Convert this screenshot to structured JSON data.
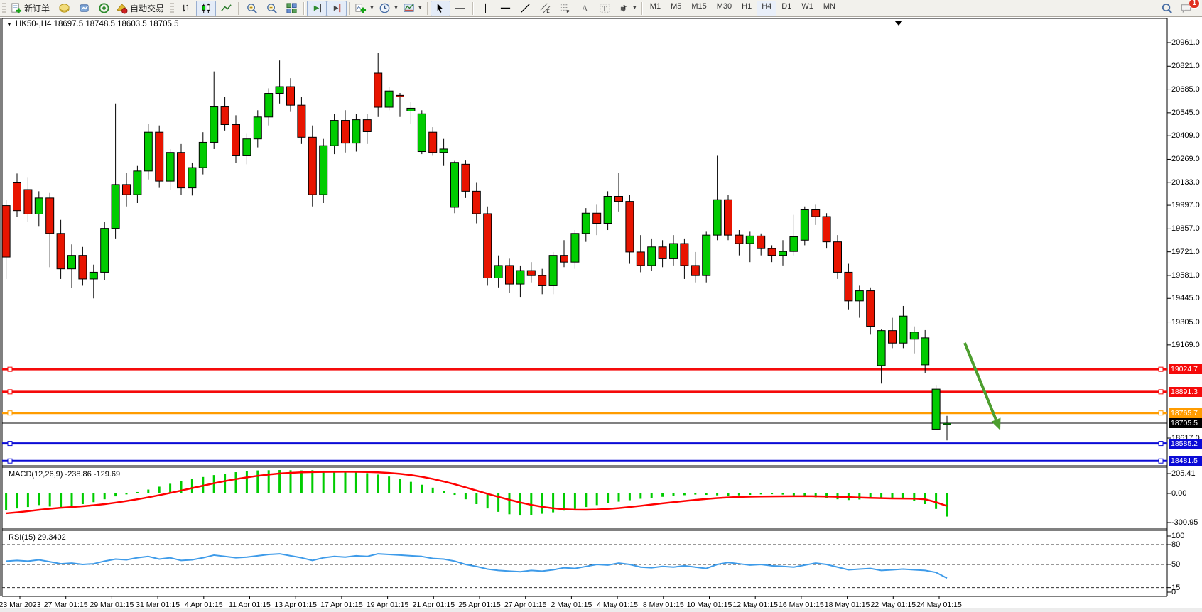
{
  "toolbar": {
    "new_order_label": "新订单",
    "autotrade_label": "自动交易",
    "timeframes": [
      "M1",
      "M5",
      "M15",
      "M30",
      "H1",
      "H4",
      "D1",
      "W1",
      "MN"
    ],
    "active_timeframe": "H4",
    "notification_count": "1",
    "icons": [
      "new-order",
      "market-watch",
      "upload-chart",
      "ticks",
      "auto-trading",
      "bar-chart",
      "candlestick-chart",
      "line-chart",
      "zoom-in",
      "zoom-out",
      "tile-windows",
      "auto-scroll",
      "chart-shift",
      "add-indicator",
      "periods",
      "templates",
      "cursor",
      "crosshair",
      "vertical-line",
      "horizontal-line",
      "trendline",
      "equidistant-channel",
      "fibonacci",
      "text",
      "text-label",
      "arrow-objects",
      "search",
      "notifications"
    ]
  },
  "chart": {
    "header": "HK50-,H4  18697.5 18748.5 18603.5 18705.5",
    "symbol": "HK50-",
    "period": "H4"
  },
  "chart_data": {
    "type": "candlestick",
    "title": "HK50-,H4",
    "ohlc_current": {
      "open": 18697.5,
      "high": 18748.5,
      "low": 18603.5,
      "close": 18705.5
    },
    "candles": [
      [
        19995,
        20030,
        19560,
        19690
      ],
      [
        20130,
        20185,
        19930,
        19965
      ],
      [
        20090,
        20160,
        19900,
        19945
      ],
      [
        19945,
        20080,
        19870,
        20040
      ],
      [
        20040,
        20070,
        19630,
        19830
      ],
      [
        19830,
        19910,
        19560,
        19620
      ],
      [
        19620,
        19765,
        19505,
        19700
      ],
      [
        19700,
        19750,
        19520,
        19560
      ],
      [
        19560,
        19645,
        19445,
        19600
      ],
      [
        19600,
        19900,
        19555,
        19860
      ],
      [
        19860,
        20600,
        19800,
        20120
      ],
      [
        20120,
        20190,
        19990,
        20060
      ],
      [
        20060,
        20230,
        20010,
        20200
      ],
      [
        20200,
        20480,
        20150,
        20430
      ],
      [
        20430,
        20470,
        20100,
        20140
      ],
      [
        20140,
        20330,
        20090,
        20310
      ],
      [
        20310,
        20360,
        20060,
        20100
      ],
      [
        20100,
        20250,
        20055,
        20220
      ],
      [
        20220,
        20430,
        20180,
        20370
      ],
      [
        20370,
        20790,
        20330,
        20580
      ],
      [
        20580,
        20640,
        20440,
        20475
      ],
      [
        20475,
        20530,
        20250,
        20290
      ],
      [
        20290,
        20420,
        20240,
        20390
      ],
      [
        20390,
        20560,
        20340,
        20520
      ],
      [
        20520,
        20690,
        20470,
        20660
      ],
      [
        20660,
        20855,
        20600,
        20700
      ],
      [
        20700,
        20750,
        20550,
        20590
      ],
      [
        20590,
        20640,
        20360,
        20400
      ],
      [
        20400,
        20470,
        19990,
        20060
      ],
      [
        20060,
        20390,
        20010,
        20350
      ],
      [
        20350,
        20540,
        20300,
        20500
      ],
      [
        20500,
        20560,
        20310,
        20365
      ],
      [
        20365,
        20540,
        20315,
        20504
      ],
      [
        20504,
        20539,
        20360,
        20433
      ],
      [
        20780,
        20898,
        20520,
        20578
      ],
      [
        20578,
        20700,
        20560,
        20674
      ],
      [
        20648,
        20662,
        20520,
        20640
      ],
      [
        20555,
        20610,
        20480,
        20572
      ],
      [
        20315,
        20560,
        20300,
        20539
      ],
      [
        20430,
        20460,
        20290,
        20310
      ],
      [
        20310,
        20390,
        20230,
        20330
      ],
      [
        19985,
        20260,
        19950,
        20251
      ],
      [
        20240,
        20262,
        20040,
        20080
      ],
      [
        20080,
        20130,
        19890,
        19947
      ],
      [
        19947,
        19990,
        19520,
        19566
      ],
      [
        19566,
        19700,
        19510,
        19640
      ],
      [
        19640,
        19680,
        19480,
        19530
      ],
      [
        19530,
        19640,
        19450,
        19610
      ],
      [
        19610,
        19660,
        19540,
        19580
      ],
      [
        19580,
        19620,
        19470,
        19520
      ],
      [
        19520,
        19720,
        19470,
        19700
      ],
      [
        19700,
        19790,
        19630,
        19660
      ],
      [
        19660,
        19850,
        19620,
        19830
      ],
      [
        19830,
        19980,
        19780,
        19950
      ],
      [
        19950,
        20000,
        19820,
        19890
      ],
      [
        19890,
        20080,
        19850,
        20050
      ],
      [
        20050,
        20190,
        19960,
        20020
      ],
      [
        20020,
        20060,
        19650,
        19720
      ],
      [
        19720,
        19820,
        19600,
        19640
      ],
      [
        19640,
        19800,
        19610,
        19750
      ],
      [
        19750,
        19790,
        19630,
        19680
      ],
      [
        19680,
        19820,
        19640,
        19770
      ],
      [
        19770,
        19800,
        19560,
        19640
      ],
      [
        19640,
        19720,
        19540,
        19580
      ],
      [
        19580,
        19840,
        19540,
        19820
      ],
      [
        19820,
        20290,
        19790,
        20030
      ],
      [
        20030,
        20060,
        19790,
        19820
      ],
      [
        19820,
        19850,
        19700,
        19770
      ],
      [
        19770,
        19840,
        19660,
        19815
      ],
      [
        19815,
        19830,
        19700,
        19740
      ],
      [
        19740,
        19760,
        19660,
        19700
      ],
      [
        19700,
        19790,
        19640,
        19723
      ],
      [
        19723,
        19940,
        19700,
        19810
      ],
      [
        19790,
        19990,
        19760,
        19970
      ],
      [
        19970,
        20000,
        19880,
        19930
      ],
      [
        19930,
        19950,
        19740,
        19780
      ],
      [
        19780,
        19820,
        19560,
        19600
      ],
      [
        19600,
        19650,
        19380,
        19430
      ],
      [
        19430,
        19520,
        19330,
        19490
      ],
      [
        19490,
        19510,
        19230,
        19280
      ],
      [
        19047,
        19260,
        18940,
        19254
      ],
      [
        19254,
        19330,
        19150,
        19180
      ],
      [
        19180,
        19400,
        19150,
        19340
      ],
      [
        19203,
        19279,
        19119,
        19245
      ],
      [
        19051,
        19257,
        19004,
        19211
      ],
      [
        18670,
        18932,
        18665,
        18907
      ],
      [
        18697.5,
        18748.5,
        18603.5,
        18705.5
      ]
    ],
    "price_axis_ticks": [
      "20961.0",
      "20821.0",
      "20685.0",
      "20545.0",
      "20409.0",
      "20269.0",
      "20133.0",
      "19997.0",
      "19857.0",
      "19721.0",
      "19581.0",
      "19445.0",
      "19305.0",
      "19169.0",
      "18617.0"
    ],
    "horizontal_lines": [
      {
        "price": 19024.7,
        "label": "19024.7",
        "color": "#f50a0a",
        "width": 3
      },
      {
        "price": 18891.3,
        "label": "18891.3",
        "color": "#f50a0a",
        "width": 3
      },
      {
        "price": 18765.7,
        "label": "18765.7",
        "color": "#ff9c00",
        "width": 3
      },
      {
        "price": 18585.2,
        "label": "18585.2",
        "color": "#0b0bd6",
        "width": 3
      },
      {
        "price": 18481.5,
        "label": "18481.5",
        "color": "#0b0bd6",
        "width": 3
      }
    ],
    "current_price_line": {
      "price": 18705.5,
      "label": "18705.5",
      "color": "#000000"
    },
    "time_labels": [
      "23 Mar 2023",
      "27 Mar 01:15",
      "29 Mar 01:15",
      "31 Mar 01:15",
      "4 Apr 01:15",
      "11 Apr 01:15",
      "13 Apr 01:15",
      "17 Apr 01:15",
      "19 Apr 01:15",
      "21 Apr 01:15",
      "25 Apr 01:15",
      "27 Apr 01:15",
      "2 May 01:15",
      "4 May 01:15",
      "8 May 01:15",
      "10 May 01:15",
      "12 May 01:15",
      "16 May 01:15",
      "18 May 01:15",
      "22 May 01:15",
      "24 May 01:15"
    ],
    "indicators": [
      {
        "name": "MACD",
        "label": "MACD(12,26,9)",
        "values_text": "-238.86 -129.69",
        "axis_ticks": [
          "205.41",
          "0.00",
          "-300.95"
        ],
        "histogram": [
          -170,
          -155,
          -140,
          -120,
          -135,
          -150,
          -130,
          -110,
          -90,
          -60,
          -30,
          -10,
          15,
          40,
          70,
          100,
          125,
          150,
          170,
          190,
          205,
          220,
          232,
          238,
          240,
          242,
          240,
          238,
          240,
          235,
          230,
          228,
          222,
          210,
          195,
          175,
          150,
          120,
          90,
          60,
          25,
          -15,
          -60,
          -110,
          -155,
          -190,
          -215,
          -228,
          -222,
          -210,
          -195,
          -178,
          -160,
          -140,
          -120,
          -100,
          -85,
          -70,
          -55,
          -45,
          -35,
          -25,
          -18,
          -12,
          -15,
          -20,
          -25,
          -20,
          -15,
          -10,
          -8,
          -12,
          -20,
          -30,
          -40,
          -50,
          -60,
          -68,
          -62,
          -55,
          -48,
          -45,
          -55,
          -75,
          -110,
          -160,
          -238.86
        ],
        "signal": [
          -205,
          -195,
          -183,
          -170,
          -158,
          -148,
          -140,
          -132,
          -122,
          -110,
          -95,
          -78,
          -60,
          -40,
          -18,
          5,
          30,
          55,
          80,
          105,
          128,
          148,
          166,
          182,
          195,
          206,
          213,
          218,
          221,
          223,
          224,
          225,
          224,
          222,
          218,
          212,
          203,
          190,
          172,
          150,
          124,
          95,
          63,
          30,
          -3,
          -35,
          -65,
          -93,
          -118,
          -138,
          -153,
          -163,
          -168,
          -169,
          -166,
          -160,
          -151,
          -140,
          -128,
          -115,
          -102,
          -90,
          -78,
          -67,
          -57,
          -48,
          -41,
          -36,
          -33,
          -31,
          -30,
          -29,
          -28,
          -28,
          -29,
          -31,
          -34,
          -38,
          -42,
          -46,
          -49,
          -51,
          -52,
          -53,
          -60,
          -90,
          -129.69
        ]
      },
      {
        "name": "RSI",
        "label": "RSI(15)",
        "value_text": "29.3402",
        "axis_ticks": [
          "100",
          "80",
          "50",
          "15",
          "0"
        ],
        "levels": [
          80,
          50,
          15
        ],
        "series": [
          55,
          56,
          55,
          57,
          54,
          51,
          52,
          50,
          51,
          55,
          58,
          57,
          60,
          62,
          58,
          60,
          56,
          57,
          60,
          64,
          62,
          60,
          61,
          63,
          65,
          66,
          63,
          60,
          56,
          60,
          62,
          61,
          63,
          62,
          66,
          65,
          64,
          63,
          62,
          59,
          58,
          55,
          50,
          47,
          43,
          41,
          40,
          39,
          41,
          40,
          42,
          45,
          44,
          47,
          50,
          49,
          52,
          50,
          46,
          45,
          47,
          46,
          48,
          46,
          44,
          50,
          53,
          51,
          49,
          50,
          48,
          47,
          46,
          49,
          52,
          50,
          46,
          42,
          43,
          44,
          41,
          42,
          43,
          42,
          41,
          38,
          29.34
        ]
      }
    ],
    "annotations": [
      {
        "type": "arrow",
        "color": "#4d9e2f",
        "from": [
          1358,
          483
        ],
        "to": [
          1408,
          606
        ],
        "width": 4
      }
    ],
    "colors": {
      "bull": "#00cc00",
      "bear": "#e81400",
      "wick": "#000000",
      "macd_hist": "#00cc00",
      "macd_signal": "#ff0000",
      "rsi": "#3e9be9"
    },
    "layout": {
      "grid": false,
      "legend_position": "none",
      "price_axis": "right"
    }
  }
}
